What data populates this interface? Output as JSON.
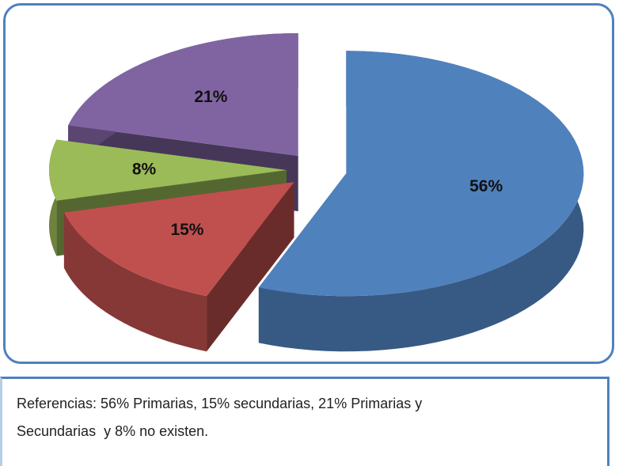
{
  "chart_data": {
    "type": "pie3d",
    "values": [
      56,
      15,
      8,
      21
    ],
    "value_labels": [
      "56%",
      "15%",
      "8%",
      "21%"
    ],
    "colors": [
      "#4f81bd",
      "#c0504d",
      "#9bbb59",
      "#8064a2"
    ],
    "exploded": true
  },
  "caption": "Referencias: 56% Primarias, 15% secundarias, 21% Primarias y Secundarias  y 8% no existen."
}
